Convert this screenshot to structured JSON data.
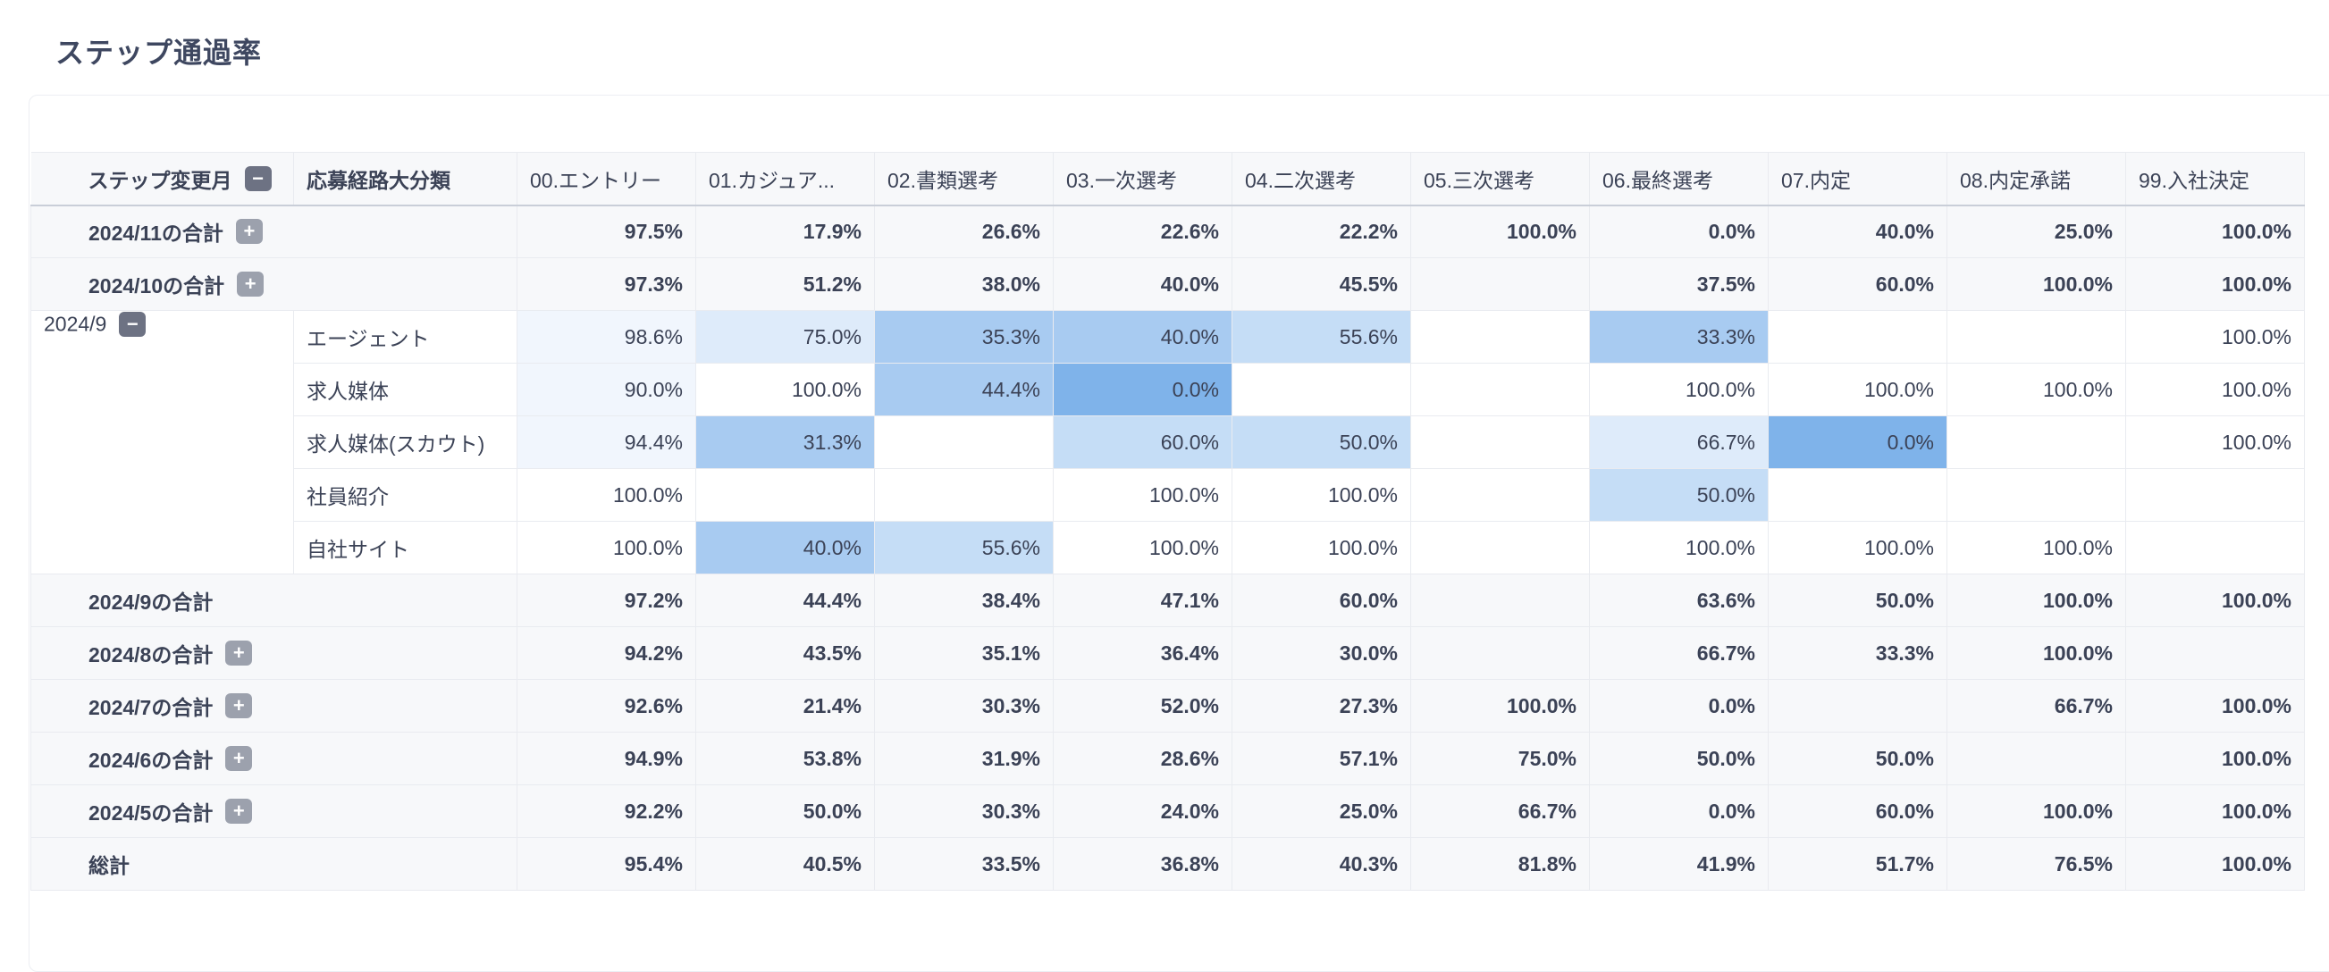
{
  "title": "ステップ通過率",
  "header": {
    "month_col": "ステップ変更月",
    "route_col": "応募経路大分類",
    "steps": [
      "00.エントリー",
      "01.カジュア...",
      "02.書類選考",
      "03.一次選考",
      "04.二次選考",
      "05.三次選考",
      "06.最終選考",
      "07.内定",
      "08.内定承諾",
      "99.入社決定"
    ]
  },
  "toggle": {
    "expand": "+",
    "collapse": "−"
  },
  "totals_before": [
    {
      "label": "2024/11の合計",
      "values": [
        "97.5%",
        "17.9%",
        "26.6%",
        "22.6%",
        "22.2%",
        "100.0%",
        "0.0%",
        "40.0%",
        "25.0%",
        "100.0%"
      ]
    },
    {
      "label": "2024/10の合計",
      "values": [
        "97.3%",
        "51.2%",
        "38.0%",
        "40.0%",
        "45.5%",
        "",
        "37.5%",
        "60.0%",
        "100.0%",
        "100.0%"
      ]
    }
  ],
  "expanded": {
    "month": "2024/9",
    "rows": [
      {
        "route": "エージェント",
        "values": [
          "98.6%",
          "75.0%",
          "35.3%",
          "40.0%",
          "55.6%",
          "",
          "33.3%",
          "",
          "",
          "100.0%"
        ]
      },
      {
        "route": "求人媒体",
        "values": [
          "90.0%",
          "100.0%",
          "44.4%",
          "0.0%",
          "",
          "",
          "100.0%",
          "100.0%",
          "100.0%",
          "100.0%"
        ]
      },
      {
        "route": "求人媒体(スカウト)",
        "values": [
          "94.4%",
          "31.3%",
          "",
          "60.0%",
          "50.0%",
          "",
          "66.7%",
          "0.0%",
          "",
          "100.0%"
        ]
      },
      {
        "route": "社員紹介",
        "values": [
          "100.0%",
          "",
          "",
          "100.0%",
          "100.0%",
          "",
          "50.0%",
          "",
          "",
          ""
        ]
      },
      {
        "route": "自社サイト",
        "values": [
          "100.0%",
          "40.0%",
          "55.6%",
          "100.0%",
          "100.0%",
          "",
          "100.0%",
          "100.0%",
          "100.0%",
          ""
        ]
      }
    ],
    "total": {
      "label": "2024/9の合計",
      "values": [
        "97.2%",
        "44.4%",
        "38.4%",
        "47.1%",
        "60.0%",
        "",
        "63.6%",
        "50.0%",
        "100.0%",
        "100.0%"
      ]
    }
  },
  "totals_after": [
    {
      "label": "2024/8の合計",
      "values": [
        "94.2%",
        "43.5%",
        "35.1%",
        "36.4%",
        "30.0%",
        "",
        "66.7%",
        "33.3%",
        "100.0%",
        ""
      ]
    },
    {
      "label": "2024/7の合計",
      "values": [
        "92.6%",
        "21.4%",
        "30.3%",
        "52.0%",
        "27.3%",
        "100.0%",
        "0.0%",
        "",
        "66.7%",
        "100.0%"
      ]
    },
    {
      "label": "2024/6の合計",
      "values": [
        "94.9%",
        "53.8%",
        "31.9%",
        "28.6%",
        "57.1%",
        "75.0%",
        "50.0%",
        "50.0%",
        "",
        "100.0%"
      ]
    },
    {
      "label": "2024/5の合計",
      "values": [
        "92.2%",
        "50.0%",
        "30.3%",
        "24.0%",
        "25.0%",
        "66.7%",
        "0.0%",
        "60.0%",
        "100.0%",
        "100.0%"
      ]
    }
  ],
  "grand_total": {
    "label": "総計",
    "values": [
      "95.4%",
      "40.5%",
      "33.5%",
      "36.8%",
      "40.3%",
      "81.8%",
      "41.9%",
      "51.7%",
      "76.5%",
      "100.0%"
    ]
  },
  "heat_colors": {
    "darkest": "#7fb3ea",
    "dark": "#a8cbf1",
    "mid": "#c5ddf6",
    "light": "#deebfa",
    "lightest": "#f1f6fd"
  }
}
